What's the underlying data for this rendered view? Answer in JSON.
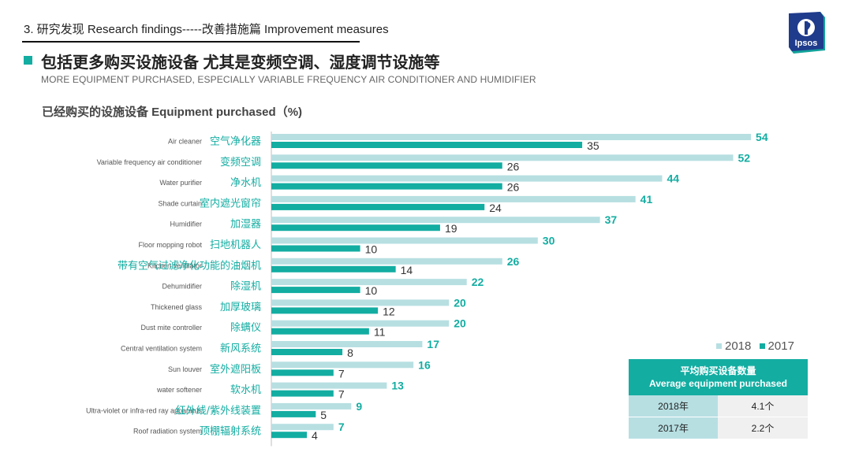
{
  "header": {
    "section_title": "3. 研究发现 Research findings-----改善措施篇 Improvement measures",
    "logo_text": "Ipsos"
  },
  "heading": {
    "title": "包括更多购买设施设备 尤其是变频空调、湿度调节设施等",
    "subtitle": "MORE EQUIPMENT PURCHASED, ESPECIALLY VARIABLE FREQUENCY AIR CONDITIONER AND HUMIDIFIER"
  },
  "colors": {
    "accent": "#13ada2",
    "series_2018": "#b7dfe2",
    "series_2017": "#13ada2",
    "label_2018": "#13ada2",
    "label_2017": "#333333"
  },
  "chart_data": {
    "type": "bar",
    "orientation": "horizontal",
    "title": "已经购买的设施设备 Equipment purchased（%)",
    "categories": [
      {
        "en": "Air cleaner",
        "zh": "空气净化器"
      },
      {
        "en": "Variable frequency air conditioner",
        "zh": "变频空调"
      },
      {
        "en": "Water purifier",
        "zh": "净水机"
      },
      {
        "en": "Shade curtain",
        "zh": "室内遮光窗帘"
      },
      {
        "en": "Humidifier",
        "zh": "加湿器"
      },
      {
        "en": "Floor mopping robot",
        "zh": "扫地机器人"
      },
      {
        "en": "Kitchen ventilator",
        "zh": "带有空气过滤净化功能的油烟机"
      },
      {
        "en": "Dehumidifier",
        "zh": "除湿机"
      },
      {
        "en": "Thickened glass",
        "zh": "加厚玻璃"
      },
      {
        "en": "Dust mite controller",
        "zh": "除螨仪"
      },
      {
        "en": "Central ventilation system",
        "zh": "新风系统"
      },
      {
        "en": "Sun louver",
        "zh": "室外遮阳板"
      },
      {
        "en": "water softener",
        "zh": "软水机"
      },
      {
        "en": "Ultra-violet or infra-red ray apparatus",
        "zh": "红外线/紫外线装置"
      },
      {
        "en": "Roof radiation system",
        "zh": "顶棚辐射系统"
      }
    ],
    "series": [
      {
        "name": "2018",
        "values": [
          54,
          52,
          44,
          41,
          37,
          30,
          26,
          22,
          20,
          20,
          17,
          16,
          13,
          9,
          7
        ]
      },
      {
        "name": "2017",
        "values": [
          35,
          26,
          26,
          24,
          19,
          10,
          14,
          10,
          12,
          11,
          8,
          7,
          7,
          5,
          4
        ]
      }
    ],
    "xlim": [
      0,
      60
    ],
    "grid": false,
    "legend_position": "bottom-right"
  },
  "average_table": {
    "header_zh": "平均购买设备数量",
    "header_en": "Average equipment  purchased",
    "rows": [
      {
        "year": "2018年",
        "value": "4.1个"
      },
      {
        "year": "2017年",
        "value": "2.2个"
      }
    ]
  }
}
